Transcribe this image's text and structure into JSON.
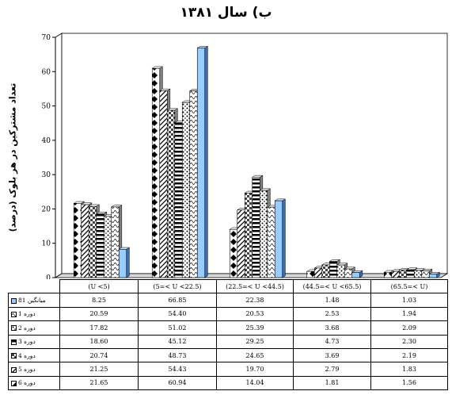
{
  "chart_data": {
    "type": "bar",
    "title": "ب) سال ۱۳۸۱",
    "ylabel": "تعداد مشترکین در هر بلوک (درصد)",
    "xlabel": "",
    "ylim": [
      0,
      70
    ],
    "yticks": [
      0,
      10,
      20,
      30,
      40,
      50,
      60,
      70
    ],
    "grid": false,
    "legend": "table-left",
    "categories": [
      "(U <5)",
      "(5=< U <22.5)",
      "(22.5=< U <44.5)",
      "(44.5=< U <65.5)",
      "(65.5=< U)"
    ],
    "series": [
      {
        "name": "دوره 6",
        "pattern": "diamond",
        "values": [
          21.65,
          60.94,
          14.04,
          1.81,
          1.56
        ]
      },
      {
        "name": "دوره 5",
        "pattern": "diag-stripe",
        "values": [
          21.25,
          54.43,
          19.7,
          2.79,
          1.83
        ]
      },
      {
        "name": "دوره 4",
        "pattern": "checker",
        "values": [
          20.74,
          48.73,
          24.65,
          3.69,
          2.19
        ]
      },
      {
        "name": "دوره 3",
        "pattern": "hstripe",
        "values": [
          18.6,
          45.12,
          29.25,
          4.73,
          2.3
        ]
      },
      {
        "name": "دوره 2",
        "pattern": "dots",
        "values": [
          17.82,
          51.02,
          25.39,
          3.68,
          2.09
        ]
      },
      {
        "name": "دوره 1",
        "pattern": "scallop",
        "values": [
          20.59,
          54.4,
          20.53,
          2.53,
          1.94
        ]
      },
      {
        "name": "میانگین 81",
        "pattern": "solid",
        "values": [
          8.25,
          66.85,
          22.38,
          1.48,
          1.03
        ]
      }
    ],
    "colors": {
      "average": "#99ccff",
      "pattern_fill": "#ffffff",
      "pattern_ink": "#000000"
    }
  }
}
